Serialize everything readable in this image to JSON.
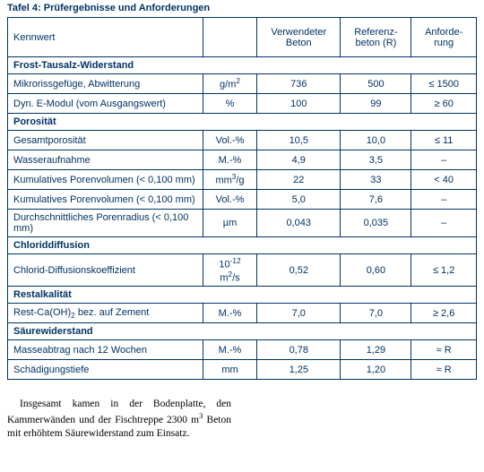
{
  "title": "Tafel 4: Prüfergebnisse und Anforderungen",
  "headers": {
    "h0": "Kennwert",
    "h1": "",
    "h2": "Verwendeter Beton",
    "h3": "Referenz­beton (R)",
    "h4": "Anforde­rung"
  },
  "sections": [
    {
      "title": "Frost-Tausalz-Widerstand",
      "rows": [
        {
          "label": "Mikrorissgefüge, Abwitterung",
          "unitHTML": "g/m<sup>2</sup>",
          "c1": "736",
          "c2": "500",
          "c3": "≤ 1500"
        },
        {
          "label": "Dyn. E-Modul (vom Ausgangswert)",
          "unitHTML": "%",
          "c1": "100",
          "c2": "99",
          "c3": "≥ 60"
        }
      ]
    },
    {
      "title": "Porosität",
      "rows": [
        {
          "label": "Gesamtporosität",
          "unitHTML": "Vol.-%",
          "c1": "10,5",
          "c2": "10,0",
          "c3": "≤ 11"
        },
        {
          "label": "Wasseraufnahme",
          "unitHTML": "M.-%",
          "c1": "4,9",
          "c2": "3,5",
          "c3": "–"
        },
        {
          "label": "Kumulatives Porenvolumen (< 0,100 mm)",
          "unitHTML": "mm<sup>3</sup>/g",
          "c1": "22",
          "c2": "33",
          "c3": "< 40"
        },
        {
          "label": "Kumulatives Porenvolumen (< 0,100 mm)",
          "unitHTML": "Vol.-%",
          "c1": "5,0",
          "c2": "7,6",
          "c3": "–"
        },
        {
          "label": "Durchschnittliches Porenradius (< 0,100 mm)",
          "unitHTML": "µm",
          "c1": "0,043",
          "c2": "0,035",
          "c3": "–"
        }
      ]
    },
    {
      "title": "Chloriddiffusion",
      "rows": [
        {
          "label": "Chlorid-Diffusionskoeffizient",
          "unitHTML": "10<sup>-12</sup> m<sup>2</sup>/s",
          "c1": "0,52",
          "c2": "0,60",
          "c3": "≤ 1,2"
        }
      ]
    },
    {
      "title": "Restalkalität",
      "rows": [
        {
          "labelHTML": "Rest-Ca(OH)<sub>2</sub> bez. auf Zement",
          "unitHTML": "M.-%",
          "c1": "7,0",
          "c2": "7,0",
          "c3": "≥ 2,6"
        }
      ]
    },
    {
      "title": "Säurewiderstand",
      "rows": [
        {
          "label": "Masseabtrag nach 12 Wochen",
          "unitHTML": "M.-%",
          "c1": "0,78",
          "c2": "1,29",
          "c3": "≈ R"
        },
        {
          "label": "Schädigungstiefe",
          "unitHTML": "mm",
          "c1": "1,25",
          "c2": "1,20",
          "c3": "≈ R"
        }
      ]
    }
  ],
  "bodytextHTML": "Insgesamt kamen in der Bodenplatte, den Kammerwänden und der Fischtreppe 2300 m<sup>3</sup> Beton mit erhöhtem Säurewider­stand zum Einsatz."
}
